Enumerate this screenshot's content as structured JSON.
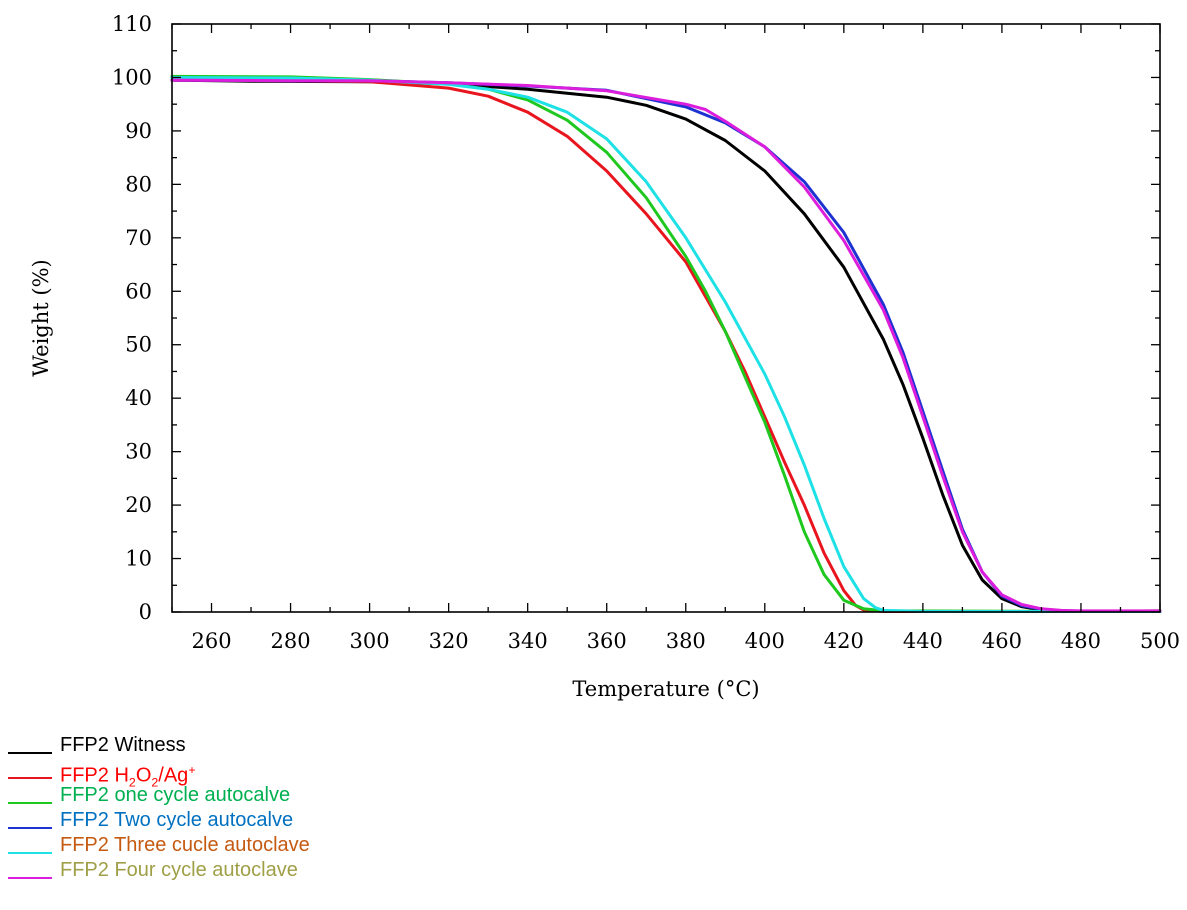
{
  "chart_data": {
    "type": "line",
    "xlabel": "Temperature (°C)",
    "ylabel": "Weight (%)",
    "xlim": [
      250,
      500
    ],
    "ylim": [
      0,
      110
    ],
    "xticks": [
      260,
      280,
      300,
      320,
      340,
      360,
      380,
      400,
      420,
      440,
      460,
      480,
      500
    ],
    "yticks": [
      0,
      10,
      20,
      30,
      40,
      50,
      60,
      70,
      80,
      90,
      100,
      110
    ],
    "grid": false,
    "legend_position": "bottom-left",
    "series": [
      {
        "name": "FFP2 Witness",
        "legend_color": "#000000",
        "line_color": "#000000",
        "x": [
          250,
          270,
          300,
          320,
          340,
          360,
          370,
          380,
          390,
          400,
          410,
          420,
          430,
          435,
          440,
          445,
          450,
          455,
          460,
          465,
          470,
          475,
          480,
          500
        ],
        "y": [
          99.5,
          99.3,
          99.2,
          98.8,
          97.8,
          96.3,
          94.8,
          92.2,
          88.2,
          82.5,
          74.5,
          64.5,
          51,
          42.5,
          32.5,
          22,
          12.5,
          6,
          2.5,
          1,
          0.4,
          0.2,
          0.1,
          0.2
        ]
      },
      {
        "name_parts": [
          "FFP2 H",
          "2",
          "O",
          "2",
          "/Ag",
          "+"
        ],
        "legend_color": "#ff0000",
        "line_color": "#e8141e",
        "x": [
          250,
          280,
          300,
          320,
          330,
          340,
          350,
          360,
          370,
          380,
          390,
          395,
          400,
          405,
          410,
          415,
          420,
          423,
          425,
          430,
          440,
          500
        ],
        "y": [
          99.5,
          99.4,
          99.2,
          98,
          96.5,
          93.5,
          89,
          82.5,
          74.5,
          65.5,
          52.5,
          45,
          36.5,
          28,
          20,
          11,
          4,
          1.2,
          0.4,
          0.1,
          0.1,
          0.1
        ]
      },
      {
        "name": "FFP2 one cycle autocalve",
        "legend_color": "#00b050",
        "line_color": "#1ec81e",
        "x": [
          250,
          280,
          300,
          320,
          330,
          340,
          350,
          360,
          370,
          380,
          385,
          390,
          395,
          400,
          405,
          410,
          415,
          420,
          425,
          430,
          500
        ],
        "y": [
          100.2,
          100.1,
          99.6,
          98.8,
          97.8,
          95.8,
          92,
          86,
          77.5,
          66.5,
          60,
          52.5,
          44,
          35.5,
          25.5,
          15,
          7,
          2.2,
          0.6,
          0.2,
          0.1
        ]
      },
      {
        "name": "FFP2 Two cycle autocalve",
        "legend_color": "#0070c0",
        "line_color": "#1e32d2",
        "x": [
          250,
          280,
          300,
          320,
          340,
          360,
          380,
          390,
          400,
          410,
          420,
          430,
          435,
          440,
          445,
          450,
          455,
          460,
          465,
          470,
          475,
          480,
          500
        ],
        "y": [
          99.5,
          99.4,
          99.4,
          99,
          98.4,
          97.6,
          94.5,
          91.5,
          87,
          80.5,
          71,
          57.5,
          48.5,
          37.5,
          26.5,
          15.5,
          7.5,
          3,
          1.2,
          0.5,
          0.2,
          0.1,
          0.1
        ]
      },
      {
        "name": "FFP2 Three cucle autoclave",
        "legend_color": "#c55a11",
        "line_color": "#1ee1e6",
        "x": [
          250,
          280,
          300,
          320,
          330,
          340,
          350,
          360,
          370,
          380,
          390,
          400,
          405,
          410,
          415,
          420,
          425,
          428,
          430,
          440,
          500
        ],
        "y": [
          100,
          99.9,
          99.5,
          98.7,
          97.8,
          96.3,
          93.5,
          88.5,
          80.5,
          70,
          58,
          44.5,
          36.5,
          27.5,
          17.5,
          8.5,
          2.5,
          0.8,
          0.3,
          0.1,
          0.1
        ]
      },
      {
        "name": "FFP2 Four cycle autoclave",
        "legend_color": "#9f9f47",
        "line_color": "#dc1edc",
        "x": [
          250,
          280,
          300,
          320,
          340,
          360,
          380,
          385,
          390,
          400,
          410,
          420,
          430,
          435,
          440,
          445,
          450,
          455,
          460,
          465,
          470,
          475,
          480,
          500
        ],
        "y": [
          99.5,
          99.4,
          99.4,
          99,
          98.5,
          97.5,
          95,
          94,
          91.8,
          87,
          79.5,
          69.5,
          56.5,
          47.5,
          36.5,
          25.5,
          15,
          7.5,
          3.2,
          1.4,
          0.6,
          0.3,
          0.2,
          0.2
        ]
      }
    ]
  }
}
